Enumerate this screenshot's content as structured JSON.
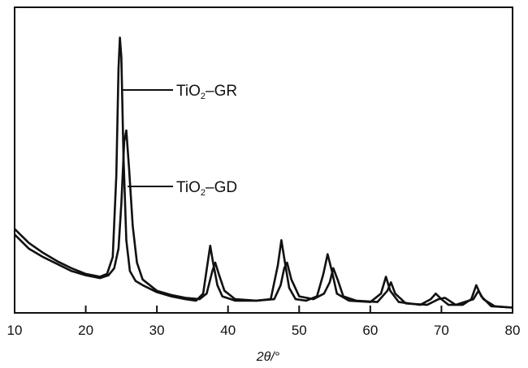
{
  "chart_data": {
    "type": "line",
    "xlabel": "2θ/°",
    "ylabel": "",
    "xlim": [
      10,
      80
    ],
    "x_ticks": [
      "10",
      "20",
      "30",
      "40",
      "50",
      "60",
      "70",
      "80"
    ],
    "y_ticks_shown": false,
    "grid": false,
    "legend": "none",
    "annotations": [
      {
        "text_main": "TiO",
        "text_sub": "2",
        "text_tail": "–GR",
        "series": "TiO2-GR",
        "at_x": 25.2
      },
      {
        "text_main": "TiO",
        "text_sub": "2",
        "text_tail": "–GD",
        "series": "TiO2-GD",
        "at_x": 25.9
      }
    ],
    "series": [
      {
        "x": [
          10,
          12,
          14,
          16,
          18,
          20,
          22,
          23,
          23.8,
          24.3,
          24.6,
          24.8,
          25.0,
          25.3,
          25.7,
          26.2,
          27,
          28,
          30,
          32,
          34,
          35.5,
          36.5,
          37.2,
          37.5,
          37.9,
          38.5,
          39.2,
          41,
          44,
          46,
          47.0,
          47.5,
          48.0,
          48.6,
          49.5,
          51,
          52.5,
          53.4,
          54.0,
          54.6,
          55.3,
          57,
          60,
          61.5,
          62.2,
          62.8,
          64,
          67,
          68.5,
          69.2,
          70.0,
          71,
          73,
          74.2,
          74.9,
          75.6,
          77,
          80
        ],
        "y": [
          29,
          24,
          20.5,
          17.5,
          15,
          13,
          12,
          13,
          19,
          48,
          86,
          97,
          90,
          55,
          25,
          14,
          10.5,
          9,
          6.5,
          5,
          4,
          3.5,
          6,
          18,
          23,
          17,
          9,
          5,
          3.5,
          3.5,
          4,
          16,
          25,
          17,
          8,
          4,
          3.5,
          5,
          13,
          20,
          14,
          6,
          3.5,
          3,
          6,
          12,
          7,
          3,
          2,
          4,
          6,
          4,
          2,
          2,
          4,
          9,
          5,
          1.5,
          1
        ]
      },
      {
        "x": [
          10,
          12,
          14,
          16,
          18,
          20,
          22,
          23.2,
          24.0,
          24.6,
          25.0,
          25.4,
          25.7,
          26.1,
          26.6,
          27.2,
          28,
          30,
          32,
          34,
          36,
          37.0,
          37.8,
          38.2,
          38.7,
          39.5,
          41,
          44,
          46.5,
          47.4,
          47.9,
          48.3,
          48.9,
          50,
          52,
          53.5,
          54.3,
          54.8,
          55.4,
          56.2,
          58,
          61,
          62.4,
          62.9,
          63.5,
          65,
          68,
          69.6,
          70.5,
          72,
          74.5,
          75.2,
          75.9,
          77.5,
          80
        ],
        "y": [
          27,
          22,
          19,
          16.5,
          14,
          12.5,
          11.5,
          12.5,
          15,
          22,
          38,
          60,
          64,
          50,
          30,
          17,
          11,
          7,
          5.5,
          4.5,
          4,
          6,
          14,
          17,
          13,
          7,
          4,
          3.5,
          4,
          9,
          15,
          17,
          11,
          5,
          4,
          6,
          10,
          15,
          11,
          5,
          3.5,
          3,
          7,
          10,
          6,
          2.5,
          2,
          4,
          4.5,
          2,
          4,
          7,
          4,
          1.5,
          1
        ]
      }
    ]
  }
}
